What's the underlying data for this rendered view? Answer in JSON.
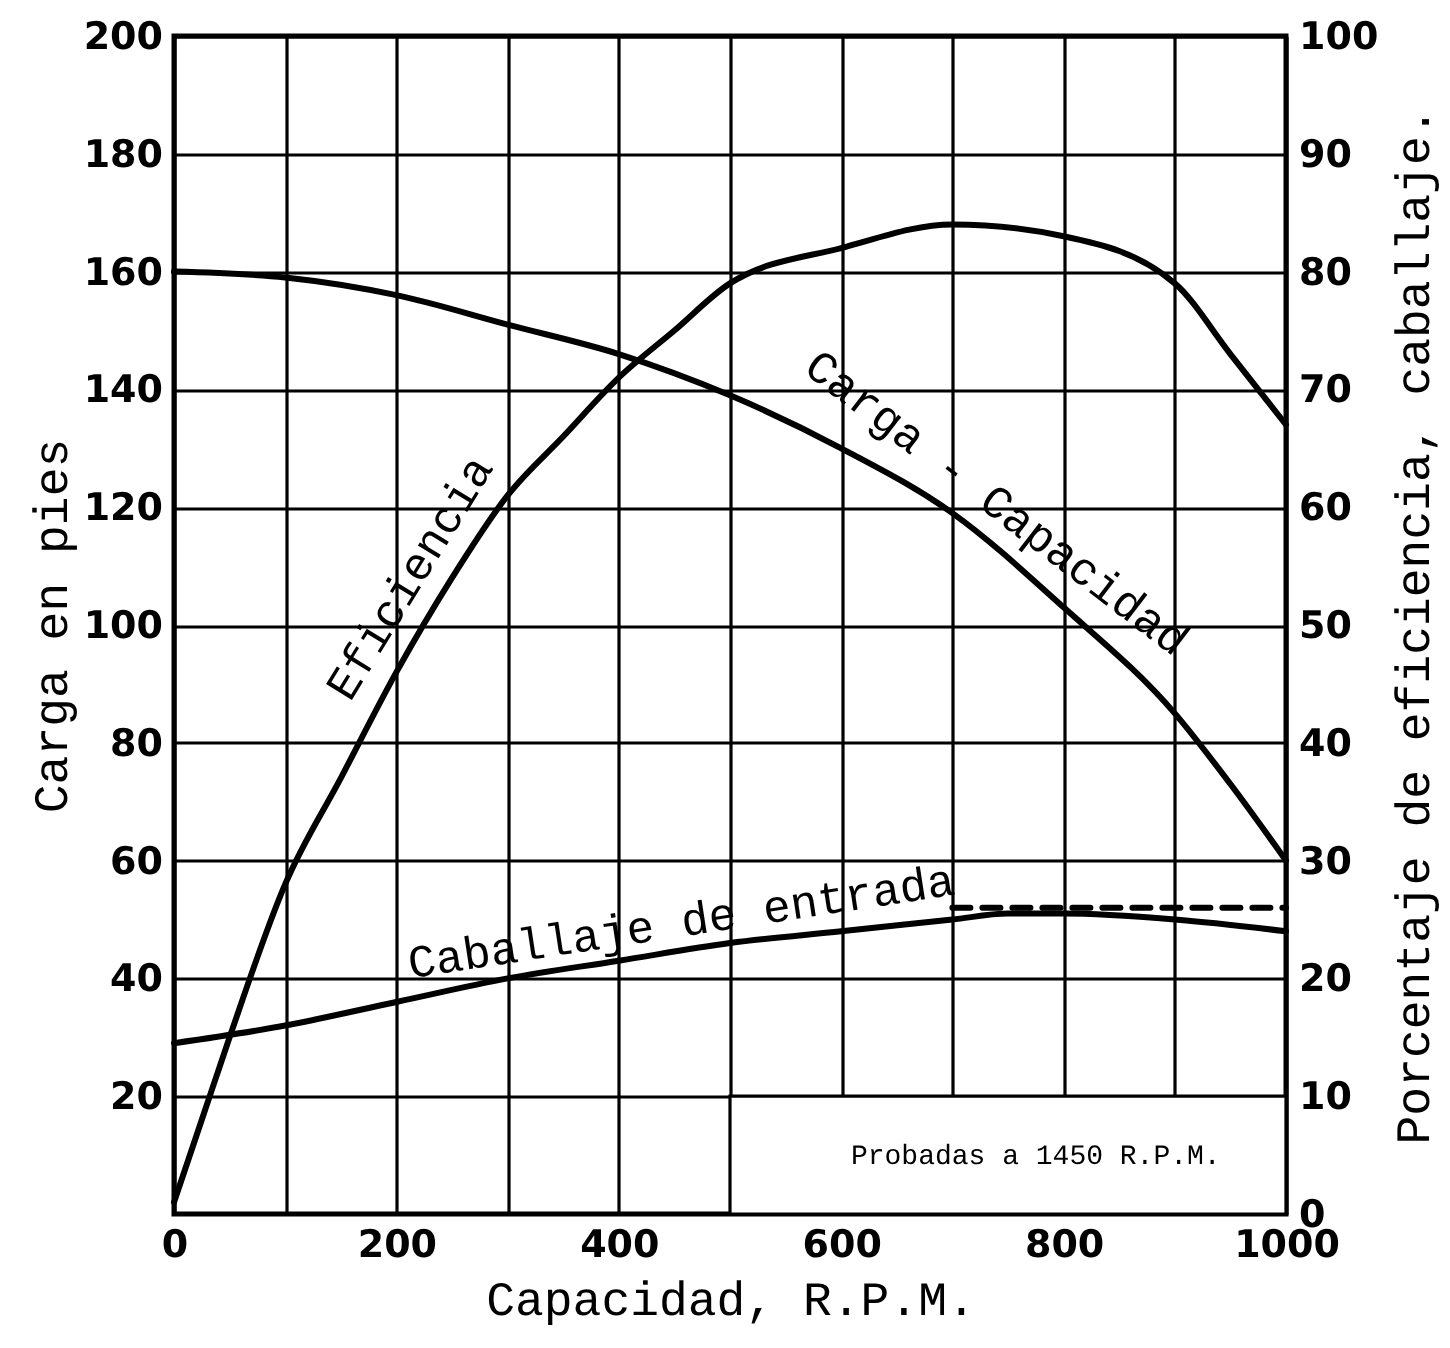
{
  "chart_data": {
    "type": "line",
    "xlabel": "Capacidad, R.P.M.",
    "ylabel": "Carga en pies",
    "y2label": "Porcentaje de eficiencia, caballaje.",
    "xlim": [
      0,
      1000
    ],
    "xticks": [
      0,
      {
        "value": 100,
        "label": null
      },
      200,
      {
        "value": 300,
        "label": null
      },
      400,
      {
        "value": 500,
        "label": null
      },
      600,
      {
        "value": 700,
        "label": null
      },
      800,
      {
        "value": 900,
        "label": null
      },
      1000
    ],
    "ylim": [
      0,
      200
    ],
    "yticks": [
      20,
      40,
      60,
      80,
      100,
      120,
      140,
      160,
      180,
      200
    ],
    "y2lim": [
      0,
      100
    ],
    "y2ticks": [
      0,
      10,
      20,
      30,
      40,
      50,
      60,
      70,
      80,
      90,
      100
    ],
    "grid": true,
    "annotations": [
      "Probadas a 1450 R.P.M."
    ],
    "series": [
      {
        "name": "Carga - Capacidad",
        "color": "#000000",
        "x": [
          0,
          100,
          200,
          300,
          400,
          500,
          600,
          700,
          800,
          900,
          950,
          1000
        ],
        "values": [
          160,
          159,
          156,
          151,
          146,
          139,
          130,
          119,
          103,
          85,
          73,
          60
        ]
      },
      {
        "name": "Eficiencia",
        "color": "#000000",
        "axis": "y2",
        "x": [
          0,
          25,
          50,
          100,
          150,
          200,
          250,
          300,
          350,
          400,
          450,
          500,
          600,
          700,
          800,
          900,
          950,
          1000
        ],
        "values": [
          1,
          8,
          15,
          28,
          37,
          46,
          54,
          61,
          66,
          71,
          75,
          79,
          82,
          84,
          83,
          79,
          73,
          67
        ]
      },
      {
        "name": "Caballaje de entrada",
        "color": "#000000",
        "axis": "y2",
        "x": [
          0,
          100,
          200,
          300,
          400,
          500,
          600,
          700,
          750,
          800,
          900,
          1000
        ],
        "values": [
          14.5,
          16,
          18,
          20,
          21.5,
          23,
          24,
          25,
          25.5,
          25.5,
          25,
          24
        ]
      },
      {
        "color": "#000000",
        "axis": "y2",
        "line_style": "dashed",
        "x": [
          700,
          1000
        ],
        "values": [
          26,
          26
        ]
      }
    ]
  }
}
